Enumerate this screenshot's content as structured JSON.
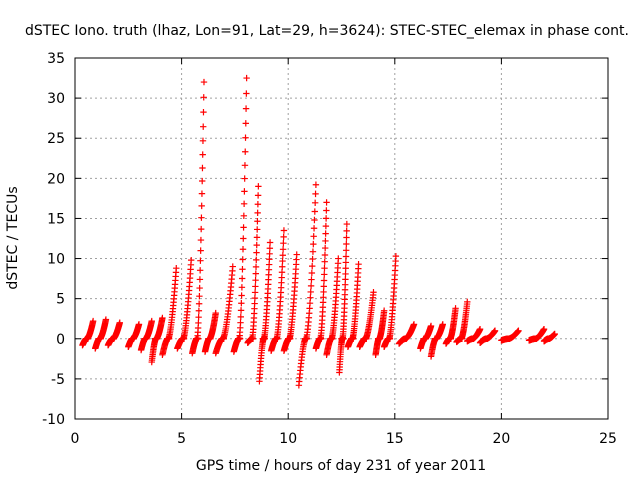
{
  "chart_data": {
    "type": "scatter",
    "title": "dSTEC Iono. truth (lhaz, Lon=91, Lat=29, h=3624): STEC-STEC_elemax in phase cont.",
    "xlabel": "GPS time / hours of day 231 of year 2011",
    "ylabel": "dSTEC  / TECUs",
    "xlim": [
      0,
      25
    ],
    "ylim": [
      -10,
      35
    ],
    "xticks": [
      "0",
      "5",
      "10",
      "15",
      "20",
      "25"
    ],
    "yticks": [
      "-10",
      "-5",
      "0",
      "5",
      "10",
      "15",
      "20",
      "25",
      "30",
      "35"
    ],
    "grid": true,
    "marker": "plus",
    "color": "#ff0000",
    "arcs": [
      {
        "x0": 0.35,
        "x1": 0.85,
        "min": -0.8,
        "max": 2.2
      },
      {
        "x0": 0.95,
        "x1": 1.45,
        "min": -1.2,
        "max": 2.4
      },
      {
        "x0": 1.55,
        "x1": 2.1,
        "min": -0.8,
        "max": 2.0
      },
      {
        "x0": 2.5,
        "x1": 3.0,
        "min": -1.0,
        "max": 1.8
      },
      {
        "x0": 3.1,
        "x1": 3.6,
        "min": -1.4,
        "max": 2.2
      },
      {
        "x0": 3.6,
        "x1": 4.1,
        "min": -2.9,
        "max": 2.6
      },
      {
        "x0": 4.1,
        "x1": 4.75,
        "min": -2.0,
        "max": 8.8
      },
      {
        "x0": 4.8,
        "x1": 5.45,
        "min": -1.2,
        "max": 9.8
      },
      {
        "x0": 5.5,
        "x1": 6.05,
        "min": -1.8,
        "max": 32.0
      },
      {
        "x0": 6.1,
        "x1": 6.6,
        "min": -1.6,
        "max": 3.2
      },
      {
        "x0": 6.6,
        "x1": 7.4,
        "min": -1.8,
        "max": 9.0
      },
      {
        "x0": 7.45,
        "x1": 8.05,
        "min": -1.6,
        "max": 32.5
      },
      {
        "x0": 8.1,
        "x1": 8.6,
        "min": -0.5,
        "max": 19.0
      },
      {
        "x0": 8.65,
        "x1": 9.15,
        "min": -5.3,
        "max": 12.0
      },
      {
        "x0": 9.2,
        "x1": 9.8,
        "min": -1.5,
        "max": 13.5
      },
      {
        "x0": 9.8,
        "x1": 10.4,
        "min": -1.5,
        "max": 10.5
      },
      {
        "x0": 10.5,
        "x1": 11.3,
        "min": -5.8,
        "max": 19.2
      },
      {
        "x0": 11.3,
        "x1": 11.8,
        "min": -1.2,
        "max": 17.0
      },
      {
        "x0": 11.8,
        "x1": 12.35,
        "min": -2.0,
        "max": 10.0
      },
      {
        "x0": 12.4,
        "x1": 12.75,
        "min": -4.2,
        "max": 14.3
      },
      {
        "x0": 12.8,
        "x1": 13.3,
        "min": -1.0,
        "max": 9.3
      },
      {
        "x0": 13.35,
        "x1": 14.0,
        "min": -1.0,
        "max": 5.8
      },
      {
        "x0": 14.1,
        "x1": 14.5,
        "min": -2.0,
        "max": 3.5
      },
      {
        "x0": 14.5,
        "x1": 15.05,
        "min": -1.0,
        "max": 10.3
      },
      {
        "x0": 15.2,
        "x1": 15.9,
        "min": -0.6,
        "max": 1.8
      },
      {
        "x0": 16.2,
        "x1": 16.7,
        "min": -1.2,
        "max": 1.6
      },
      {
        "x0": 16.7,
        "x1": 17.25,
        "min": -2.2,
        "max": 1.8
      },
      {
        "x0": 17.4,
        "x1": 17.85,
        "min": -0.6,
        "max": 3.8
      },
      {
        "x0": 17.9,
        "x1": 18.4,
        "min": -0.4,
        "max": 4.6
      },
      {
        "x0": 18.4,
        "x1": 19.0,
        "min": -0.3,
        "max": 1.2
      },
      {
        "x0": 19.0,
        "x1": 19.7,
        "min": -0.5,
        "max": 1.0
      },
      {
        "x0": 20.0,
        "x1": 20.8,
        "min": -0.2,
        "max": 1.0
      },
      {
        "x0": 21.3,
        "x1": 22.0,
        "min": -0.2,
        "max": 1.2
      },
      {
        "x0": 22.0,
        "x1": 22.5,
        "min": -0.3,
        "max": 0.6
      }
    ]
  }
}
